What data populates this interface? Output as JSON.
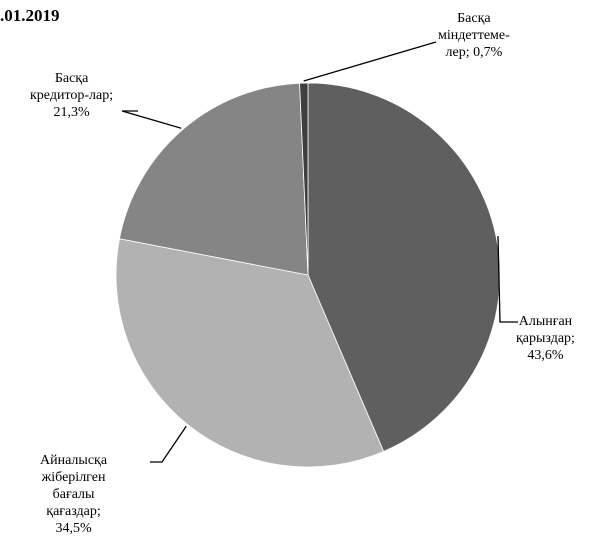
{
  "chart_data": {
    "type": "pie",
    "title": ".01.2019",
    "start_angle_deg": 0,
    "direction": "clockwise",
    "colors": [
      "#5f5f5f",
      "#b2b2b2",
      "#858585",
      "#3f3f3f"
    ],
    "slices": [
      {
        "label_lines": [
          "Алынған",
          "қарыздар;",
          "43,6%"
        ],
        "value": 43.6
      },
      {
        "label_lines": [
          "Айналысқа",
          "жіберілген",
          "бағалы",
          "қағаздар;",
          "34,5%"
        ],
        "value": 34.5
      },
      {
        "label_lines": [
          "Басқа",
          "кредитор-лар;",
          "21,3%"
        ],
        "value": 21.3
      },
      {
        "label_lines": [
          "Басқа",
          "міндеттеме-",
          "лер; 0,7%"
        ],
        "value": 0.7
      }
    ]
  }
}
